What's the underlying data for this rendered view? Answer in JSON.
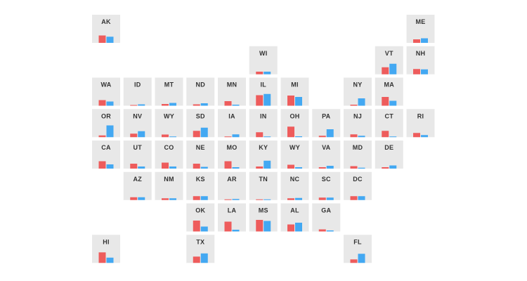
{
  "chart_data": {
    "type": "bar",
    "title": "",
    "xlabel": "",
    "ylabel": "",
    "ylim": [
      0,
      100
    ],
    "layout": "us-state-tile-grid",
    "colors": {
      "series_a": "#ee5c5c",
      "series_b": "#43a8f2",
      "tile": "#e8e8e8",
      "label": "#333333"
    },
    "series": [
      {
        "color": "#ee5c5c"
      },
      {
        "color": "#43a8f2"
      }
    ],
    "states": [
      {
        "abbr": "AK",
        "col": 0,
        "row": 0,
        "values": [
          42,
          35
        ]
      },
      {
        "abbr": "ME",
        "col": 10,
        "row": 0,
        "values": [
          20,
          26
        ]
      },
      {
        "abbr": "WI",
        "col": 5,
        "row": 1,
        "values": [
          15,
          15
        ]
      },
      {
        "abbr": "VT",
        "col": 9,
        "row": 1,
        "values": [
          40,
          60
        ]
      },
      {
        "abbr": "NH",
        "col": 10,
        "row": 1,
        "values": [
          30,
          28
        ]
      },
      {
        "abbr": "WA",
        "col": 0,
        "row": 2,
        "values": [
          32,
          24
        ]
      },
      {
        "abbr": "ID",
        "col": 1,
        "row": 2,
        "values": [
          4,
          8
        ]
      },
      {
        "abbr": "MT",
        "col": 2,
        "row": 2,
        "values": [
          10,
          16
        ]
      },
      {
        "abbr": "ND",
        "col": 3,
        "row": 2,
        "values": [
          8,
          14
        ]
      },
      {
        "abbr": "MN",
        "col": 4,
        "row": 2,
        "values": [
          26,
          6
        ]
      },
      {
        "abbr": "IL",
        "col": 5,
        "row": 2,
        "values": [
          60,
          67
        ]
      },
      {
        "abbr": "MI",
        "col": 6,
        "row": 2,
        "values": [
          58,
          50
        ]
      },
      {
        "abbr": "NY",
        "col": 8,
        "row": 2,
        "values": [
          6,
          42
        ]
      },
      {
        "abbr": "MA",
        "col": 9,
        "row": 2,
        "values": [
          50,
          28
        ]
      },
      {
        "abbr": "OR",
        "col": 0,
        "row": 3,
        "values": [
          10,
          67
        ]
      },
      {
        "abbr": "NV",
        "col": 1,
        "row": 3,
        "values": [
          20,
          34
        ]
      },
      {
        "abbr": "WY",
        "col": 2,
        "row": 3,
        "values": [
          15,
          3
        ]
      },
      {
        "abbr": "SD",
        "col": 3,
        "row": 3,
        "values": [
          36,
          54
        ]
      },
      {
        "abbr": "IA",
        "col": 4,
        "row": 3,
        "values": [
          4,
          16
        ]
      },
      {
        "abbr": "IN",
        "col": 5,
        "row": 3,
        "values": [
          28,
          3
        ]
      },
      {
        "abbr": "OH",
        "col": 6,
        "row": 3,
        "values": [
          60,
          5
        ]
      },
      {
        "abbr": "PA",
        "col": 7,
        "row": 3,
        "values": [
          8,
          45
        ]
      },
      {
        "abbr": "NJ",
        "col": 8,
        "row": 3,
        "values": [
          16,
          8
        ]
      },
      {
        "abbr": "CT",
        "col": 9,
        "row": 3,
        "values": [
          36,
          4
        ]
      },
      {
        "abbr": "RI",
        "col": 10,
        "row": 3,
        "values": [
          24,
          12
        ]
      },
      {
        "abbr": "CA",
        "col": 0,
        "row": 4,
        "values": [
          42,
          24
        ]
      },
      {
        "abbr": "UT",
        "col": 1,
        "row": 4,
        "values": [
          28,
          12
        ]
      },
      {
        "abbr": "CO",
        "col": 2,
        "row": 4,
        "values": [
          34,
          12
        ]
      },
      {
        "abbr": "NE",
        "col": 3,
        "row": 4,
        "values": [
          28,
          10
        ]
      },
      {
        "abbr": "MO",
        "col": 4,
        "row": 4,
        "values": [
          42,
          8
        ]
      },
      {
        "abbr": "KY",
        "col": 5,
        "row": 4,
        "values": [
          12,
          45
        ]
      },
      {
        "abbr": "WY",
        "col": 6,
        "row": 4,
        "values": [
          22,
          8
        ]
      },
      {
        "abbr": "VA",
        "col": 7,
        "row": 4,
        "values": [
          8,
          16
        ]
      },
      {
        "abbr": "MD",
        "col": 8,
        "row": 4,
        "values": [
          14,
          5
        ]
      },
      {
        "abbr": "DE",
        "col": 9,
        "row": 4,
        "values": [
          8,
          18
        ]
      },
      {
        "abbr": "AZ",
        "col": 1,
        "row": 5,
        "values": [
          16,
          16
        ]
      },
      {
        "abbr": "NM",
        "col": 2,
        "row": 5,
        "values": [
          10,
          10
        ]
      },
      {
        "abbr": "KS",
        "col": 3,
        "row": 5,
        "values": [
          22,
          22
        ]
      },
      {
        "abbr": "AR",
        "col": 4,
        "row": 5,
        "values": [
          4,
          6
        ]
      },
      {
        "abbr": "TN",
        "col": 5,
        "row": 5,
        "values": [
          4,
          4
        ]
      },
      {
        "abbr": "NC",
        "col": 6,
        "row": 5,
        "values": [
          10,
          12
        ]
      },
      {
        "abbr": "SC",
        "col": 7,
        "row": 5,
        "values": [
          14,
          14
        ]
      },
      {
        "abbr": "DC",
        "col": 8,
        "row": 5,
        "values": [
          22,
          22
        ]
      },
      {
        "abbr": "OK",
        "col": 3,
        "row": 6,
        "values": [
          62,
          28
        ]
      },
      {
        "abbr": "LA",
        "col": 4,
        "row": 6,
        "values": [
          56,
          10
        ]
      },
      {
        "abbr": "MS",
        "col": 5,
        "row": 6,
        "values": [
          66,
          60
        ]
      },
      {
        "abbr": "AL",
        "col": 6,
        "row": 6,
        "values": [
          40,
          50
        ]
      },
      {
        "abbr": "GA",
        "col": 7,
        "row": 6,
        "values": [
          12,
          6
        ]
      },
      {
        "abbr": "HI",
        "col": 0,
        "row": 7,
        "values": [
          60,
          30
        ]
      },
      {
        "abbr": "TX",
        "col": 3,
        "row": 7,
        "values": [
          36,
          54
        ]
      },
      {
        "abbr": "FL",
        "col": 8,
        "row": 7,
        "values": [
          20,
          52
        ]
      }
    ]
  }
}
